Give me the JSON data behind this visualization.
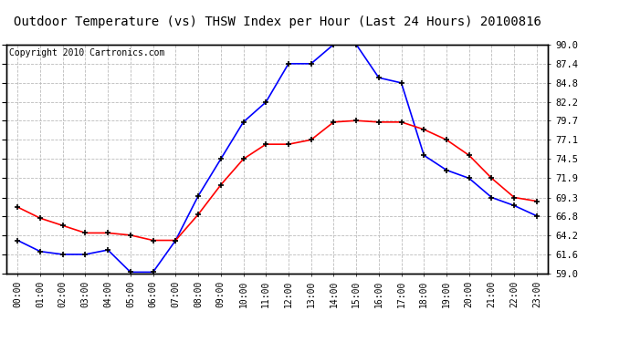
{
  "title": "Outdoor Temperature (vs) THSW Index per Hour (Last 24 Hours) 20100816",
  "copyright": "Copyright 2010 Cartronics.com",
  "hours": [
    0,
    1,
    2,
    3,
    4,
    5,
    6,
    7,
    8,
    9,
    10,
    11,
    12,
    13,
    14,
    15,
    16,
    17,
    18,
    19,
    20,
    21,
    22,
    23
  ],
  "thsw": [
    63.5,
    62.0,
    61.6,
    61.6,
    62.2,
    59.2,
    59.2,
    63.5,
    69.5,
    74.5,
    79.5,
    82.2,
    87.4,
    87.4,
    90.0,
    90.0,
    85.5,
    84.8,
    75.0,
    73.0,
    71.9,
    69.3,
    68.2,
    66.8
  ],
  "temp": [
    68.0,
    66.5,
    65.5,
    64.5,
    64.5,
    64.2,
    63.5,
    63.5,
    67.0,
    71.0,
    74.5,
    76.5,
    76.5,
    77.1,
    79.5,
    79.7,
    79.5,
    79.5,
    78.5,
    77.1,
    75.0,
    71.9,
    69.3,
    68.8
  ],
  "thsw_color": "#0000FF",
  "temp_color": "#FF0000",
  "bg_color": "#FFFFFF",
  "grid_color": "#BBBBBB",
  "ylim": [
    59.0,
    90.0
  ],
  "yticks": [
    59.0,
    61.6,
    64.2,
    66.8,
    69.3,
    71.9,
    74.5,
    77.1,
    79.7,
    82.2,
    84.8,
    87.4,
    90.0
  ],
  "title_fontsize": 10,
  "copyright_fontsize": 7,
  "tick_fontsize": 7.5,
  "xtick_fontsize": 7
}
